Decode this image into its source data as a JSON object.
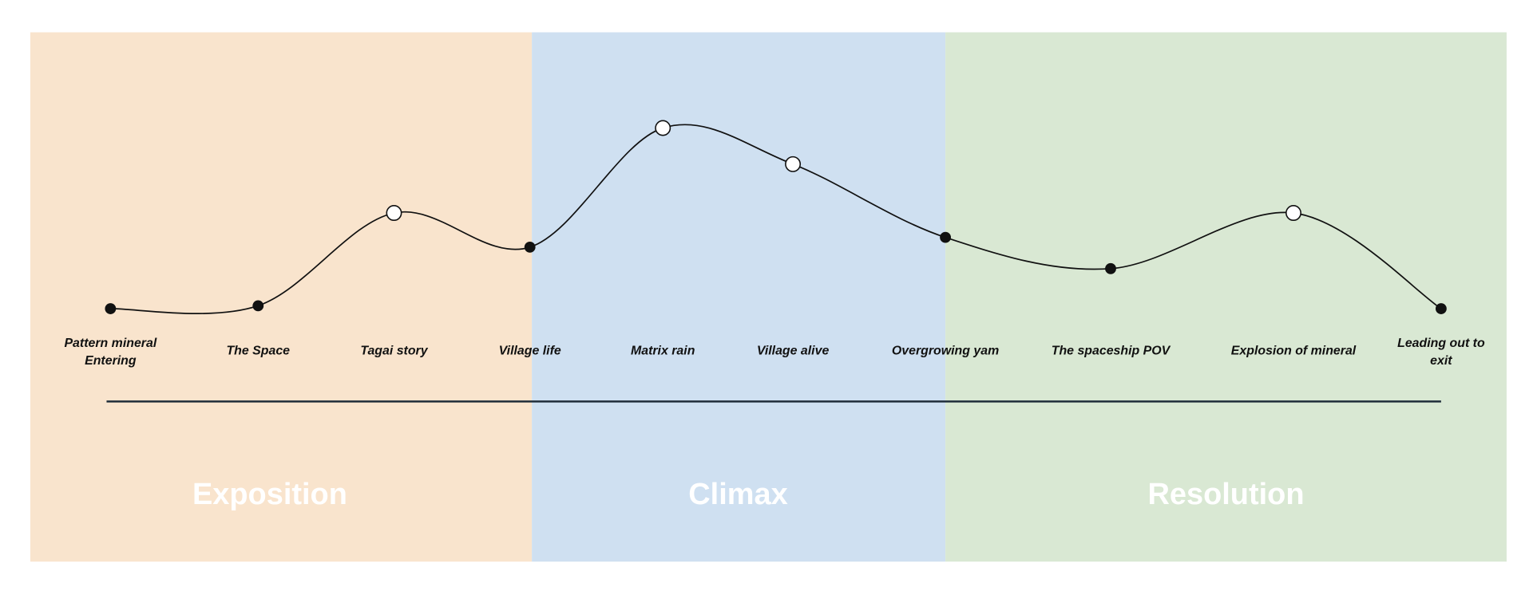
{
  "sections": [
    {
      "title": "Exposition"
    },
    {
      "title": "Climax"
    },
    {
      "title": "Resolution"
    }
  ],
  "nodes": [
    {
      "label": [
        "Pattern mineral",
        "Entering"
      ]
    },
    {
      "label": [
        "The Space"
      ]
    },
    {
      "label": [
        "Tagai story"
      ]
    },
    {
      "label": [
        "Village life"
      ]
    },
    {
      "label": [
        "Matrix rain"
      ]
    },
    {
      "label": [
        "Village alive"
      ]
    },
    {
      "label": [
        "Overgrowing yam"
      ]
    },
    {
      "label": [
        "The spaceship POV"
      ]
    },
    {
      "label": [
        "Explosion of mineral"
      ]
    },
    {
      "label": [
        "Leading out to",
        "exit"
      ]
    }
  ]
}
